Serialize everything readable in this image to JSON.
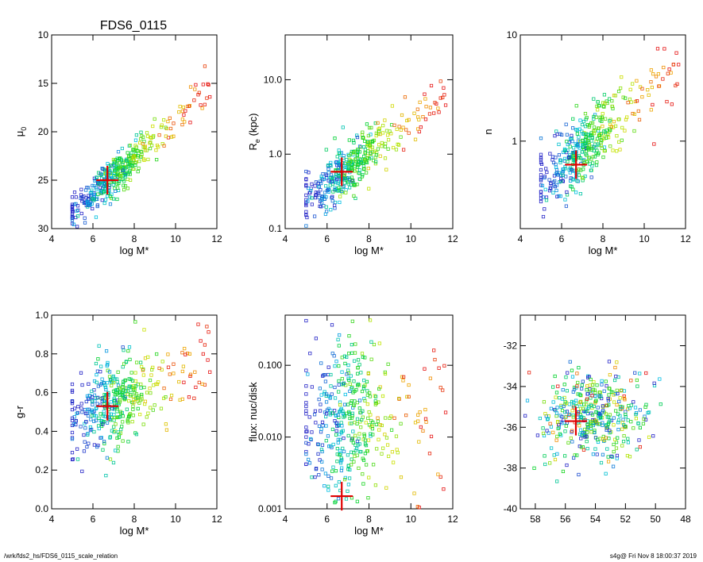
{
  "title": "FDS6_0115",
  "footer": {
    "left": "/wrk/fds2_hs/FDS6_0115_scale_relation",
    "right": "s4g@  Fri Nov  8 18:00:37 2019"
  },
  "point_count": 420,
  "chart_data": [
    {
      "id": "mu0",
      "type": "scatter",
      "xlabel": "log M*",
      "ylabel_main": "μ",
      "ylabel_sub": "0",
      "xlim": [
        4,
        12
      ],
      "ylim": [
        30,
        10
      ],
      "yscale": "linear",
      "yinverted": true,
      "xticks": [
        "4",
        "6",
        "8",
        "10",
        "12"
      ],
      "yticks": [
        "10",
        "15",
        "20",
        "25",
        "30"
      ],
      "marker": {
        "x": 6.7,
        "y": 25.0
      }
    },
    {
      "id": "re",
      "type": "scatter",
      "xlabel": "log M*",
      "ylabel_main": "R",
      "ylabel_sub": "e",
      "ylabel_tail": " (kpc)",
      "xlim": [
        4,
        12
      ],
      "ylim": [
        0.1,
        40
      ],
      "yscale": "log",
      "xticks": [
        "4",
        "6",
        "8",
        "10",
        "12"
      ],
      "yticks": [
        "0.1",
        "1.0",
        "10.0"
      ],
      "marker": {
        "x": 6.7,
        "y": 0.58
      }
    },
    {
      "id": "n",
      "type": "scatter",
      "xlabel": "log M*",
      "ylabel_main": "n",
      "xlim": [
        4,
        12
      ],
      "ylim": [
        0.15,
        10
      ],
      "yscale": "log",
      "xticks": [
        "4",
        "6",
        "8",
        "10",
        "12"
      ],
      "yticks": [
        "1",
        "10"
      ],
      "marker": {
        "x": 6.7,
        "y": 0.6
      }
    },
    {
      "id": "gr",
      "type": "scatter",
      "xlabel": "log M*",
      "ylabel_main": "g-r",
      "xlim": [
        4,
        12
      ],
      "ylim": [
        0.0,
        1.0
      ],
      "yscale": "linear",
      "xticks": [
        "4",
        "6",
        "8",
        "10",
        "12"
      ],
      "yticks": [
        "0.0",
        "0.2",
        "0.4",
        "0.6",
        "0.8",
        "1.0"
      ],
      "marker": {
        "x": 6.7,
        "y": 0.53
      }
    },
    {
      "id": "flux",
      "type": "scatter",
      "xlabel": "log M*",
      "ylabel_main": "flux: nuc/disk",
      "xlim": [
        4,
        12
      ],
      "ylim": [
        0.001,
        0.5
      ],
      "yscale": "log",
      "xticks": [
        "4",
        "6",
        "8",
        "10",
        "12"
      ],
      "yticks": [
        "0.001",
        "0.010",
        "0.100"
      ],
      "marker": {
        "x": 6.7,
        "y": 0.0015
      }
    },
    {
      "id": "radec",
      "type": "scatter",
      "xlabel": "",
      "ylabel_main": "",
      "xlim": [
        59,
        48
      ],
      "ylim": [
        -40,
        -30.5
      ],
      "yscale": "linear",
      "xticks": [
        "58",
        "56",
        "54",
        "52",
        "50",
        "48"
      ],
      "yticks": [
        "-40",
        "-38",
        "-36",
        "-34",
        "-32"
      ],
      "marker": {
        "x": 55.3,
        "y": -35.7
      }
    }
  ]
}
